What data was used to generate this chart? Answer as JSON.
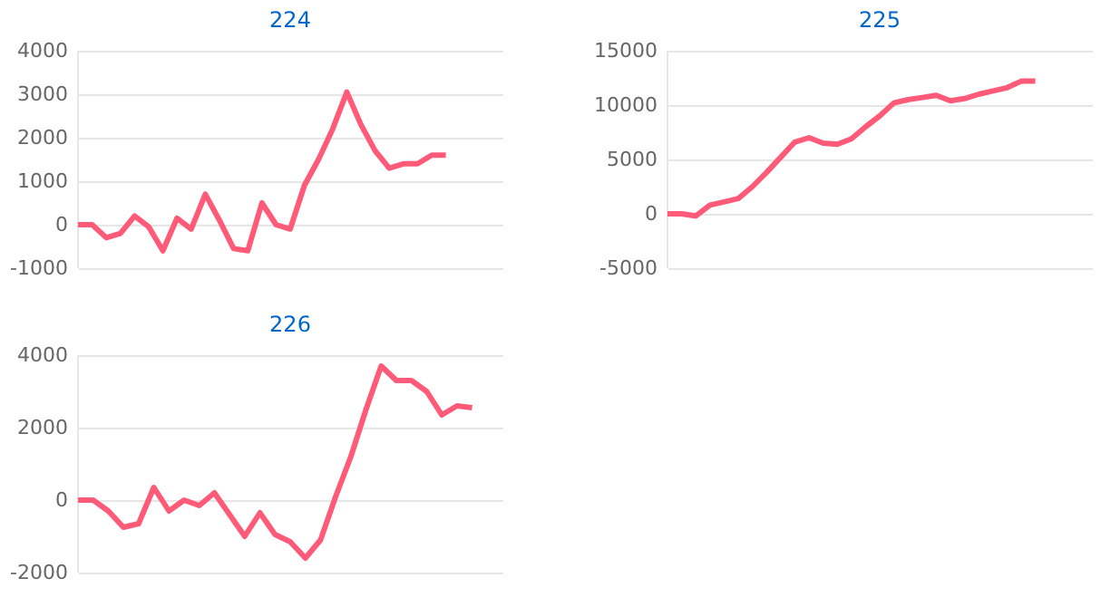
{
  "chart_data": [
    {
      "type": "line",
      "title": "224",
      "categories": [
        null,
        null,
        null,
        null,
        null,
        null,
        null,
        null,
        null,
        null,
        null,
        null,
        null,
        null,
        null,
        null,
        null,
        null,
        null,
        null,
        null,
        null,
        null,
        null,
        null,
        null,
        null,
        null,
        null,
        null,
        null
      ],
      "series": [
        {
          "color": "#ff5a78",
          "values": [
            0,
            0,
            -300,
            -200,
            200,
            -50,
            -600,
            150,
            -100,
            700,
            100,
            -550,
            -600,
            500,
            0,
            -100,
            900,
            1500,
            2200,
            3050,
            2300,
            1700,
            1300,
            1400,
            1400,
            1600,
            1600,
            null,
            null,
            null,
            null
          ]
        }
      ],
      "ylim": [
        -1000,
        4000
      ],
      "yticks": [
        -1000,
        0,
        1000,
        2000,
        3000,
        4000
      ],
      "grid": "y",
      "tick_labels": "y",
      "marker": "none",
      "line_style": "solid"
    },
    {
      "type": "line",
      "title": "225",
      "categories": [
        null,
        null,
        null,
        null,
        null,
        null,
        null,
        null,
        null,
        null,
        null,
        null,
        null,
        null,
        null,
        null,
        null,
        null,
        null,
        null,
        null,
        null,
        null,
        null,
        null,
        null,
        null,
        null,
        null,
        null,
        null
      ],
      "series": [
        {
          "color": "#ff5a78",
          "values": [
            0,
            0,
            -200,
            800,
            1100,
            1400,
            2500,
            3800,
            5200,
            6600,
            7000,
            6500,
            6400,
            6900,
            8000,
            9000,
            10200,
            10500,
            10700,
            10900,
            10400,
            10600,
            11000,
            11300,
            11600,
            12200,
            12200,
            null,
            null,
            null,
            null
          ]
        }
      ],
      "ylim": [
        -5000,
        15000
      ],
      "yticks": [
        -5000,
        0,
        5000,
        10000,
        15000
      ],
      "grid": "y",
      "tick_labels": "y",
      "marker": "none",
      "line_style": "solid"
    },
    {
      "type": "line",
      "title": "226",
      "categories": [
        null,
        null,
        null,
        null,
        null,
        null,
        null,
        null,
        null,
        null,
        null,
        null,
        null,
        null,
        null,
        null,
        null,
        null,
        null,
        null,
        null,
        null,
        null,
        null,
        null,
        null,
        null,
        null,
        null
      ],
      "series": [
        {
          "color": "#ff5a78",
          "values": [
            0,
            0,
            -300,
            -750,
            -650,
            350,
            -300,
            0,
            -150,
            200,
            -400,
            -1000,
            -350,
            -950,
            -1150,
            -1600,
            -1100,
            100,
            1200,
            2500,
            3700,
            3300,
            3300,
            3000,
            2350,
            2600,
            2550,
            null,
            null
          ]
        }
      ],
      "ylim": [
        -2000,
        4000
      ],
      "yticks": [
        -2000,
        0,
        2000,
        4000
      ],
      "grid": "y",
      "tick_labels": "y",
      "marker": "none",
      "line_style": "solid"
    }
  ]
}
